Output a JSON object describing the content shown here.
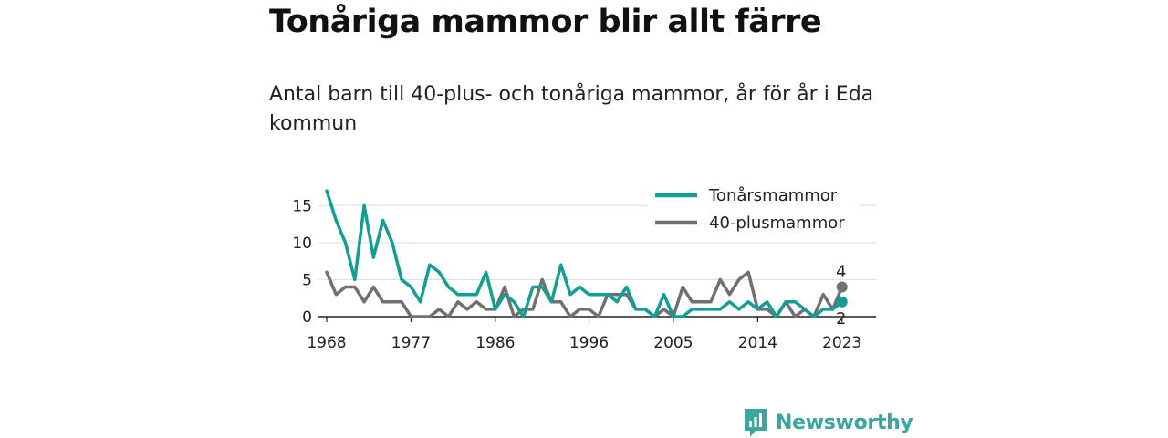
{
  "title": "Tonåriga mammor blir allt färre",
  "subtitle": "Antal barn till 40-plus- och tonåriga mammor, år för år i Eda kommun",
  "brand": {
    "name": "Newsworthy",
    "icon": "newsworthy-logo-icon"
  },
  "colors": {
    "teal": "#129e94",
    "grey": "#707070",
    "brand": "#3aa6a0"
  },
  "chart_data": {
    "type": "line",
    "x_start": 1968,
    "x_end": 2024,
    "xticks": [
      1968,
      1977,
      1986,
      1996,
      2005,
      2014,
      2023
    ],
    "yticks": [
      0,
      5,
      10,
      15
    ],
    "ylim": [
      0,
      17.5
    ],
    "grid": true,
    "legend_position": "top-right",
    "series": [
      {
        "name": "Tonårsmammor",
        "color": "#129e94",
        "end_label": "2",
        "values": [
          17,
          13,
          10,
          5,
          15,
          8,
          13,
          10,
          5,
          4,
          2,
          7,
          6,
          4,
          3,
          3,
          3,
          6,
          1,
          3,
          2,
          0,
          4,
          4,
          2,
          7,
          3,
          4,
          3,
          3,
          3,
          2,
          4,
          1,
          1,
          0,
          3,
          0,
          0,
          1,
          1,
          1,
          1,
          2,
          1,
          2,
          1,
          2,
          0,
          2,
          2,
          1,
          0,
          1,
          1,
          2
        ]
      },
      {
        "name": "40-plusmammor",
        "color": "#707070",
        "end_label": "4",
        "values": [
          6,
          3,
          4,
          4,
          2,
          4,
          2,
          2,
          2,
          0,
          0,
          0,
          1,
          0,
          2,
          1,
          2,
          1,
          1,
          4,
          0,
          1,
          1,
          5,
          2,
          2,
          0,
          1,
          1,
          0,
          3,
          3,
          3,
          1,
          1,
          0,
          1,
          0,
          4,
          2,
          2,
          2,
          5,
          3,
          5,
          6,
          1,
          1,
          0,
          2,
          0,
          1,
          0,
          3,
          1,
          4
        ]
      }
    ]
  }
}
